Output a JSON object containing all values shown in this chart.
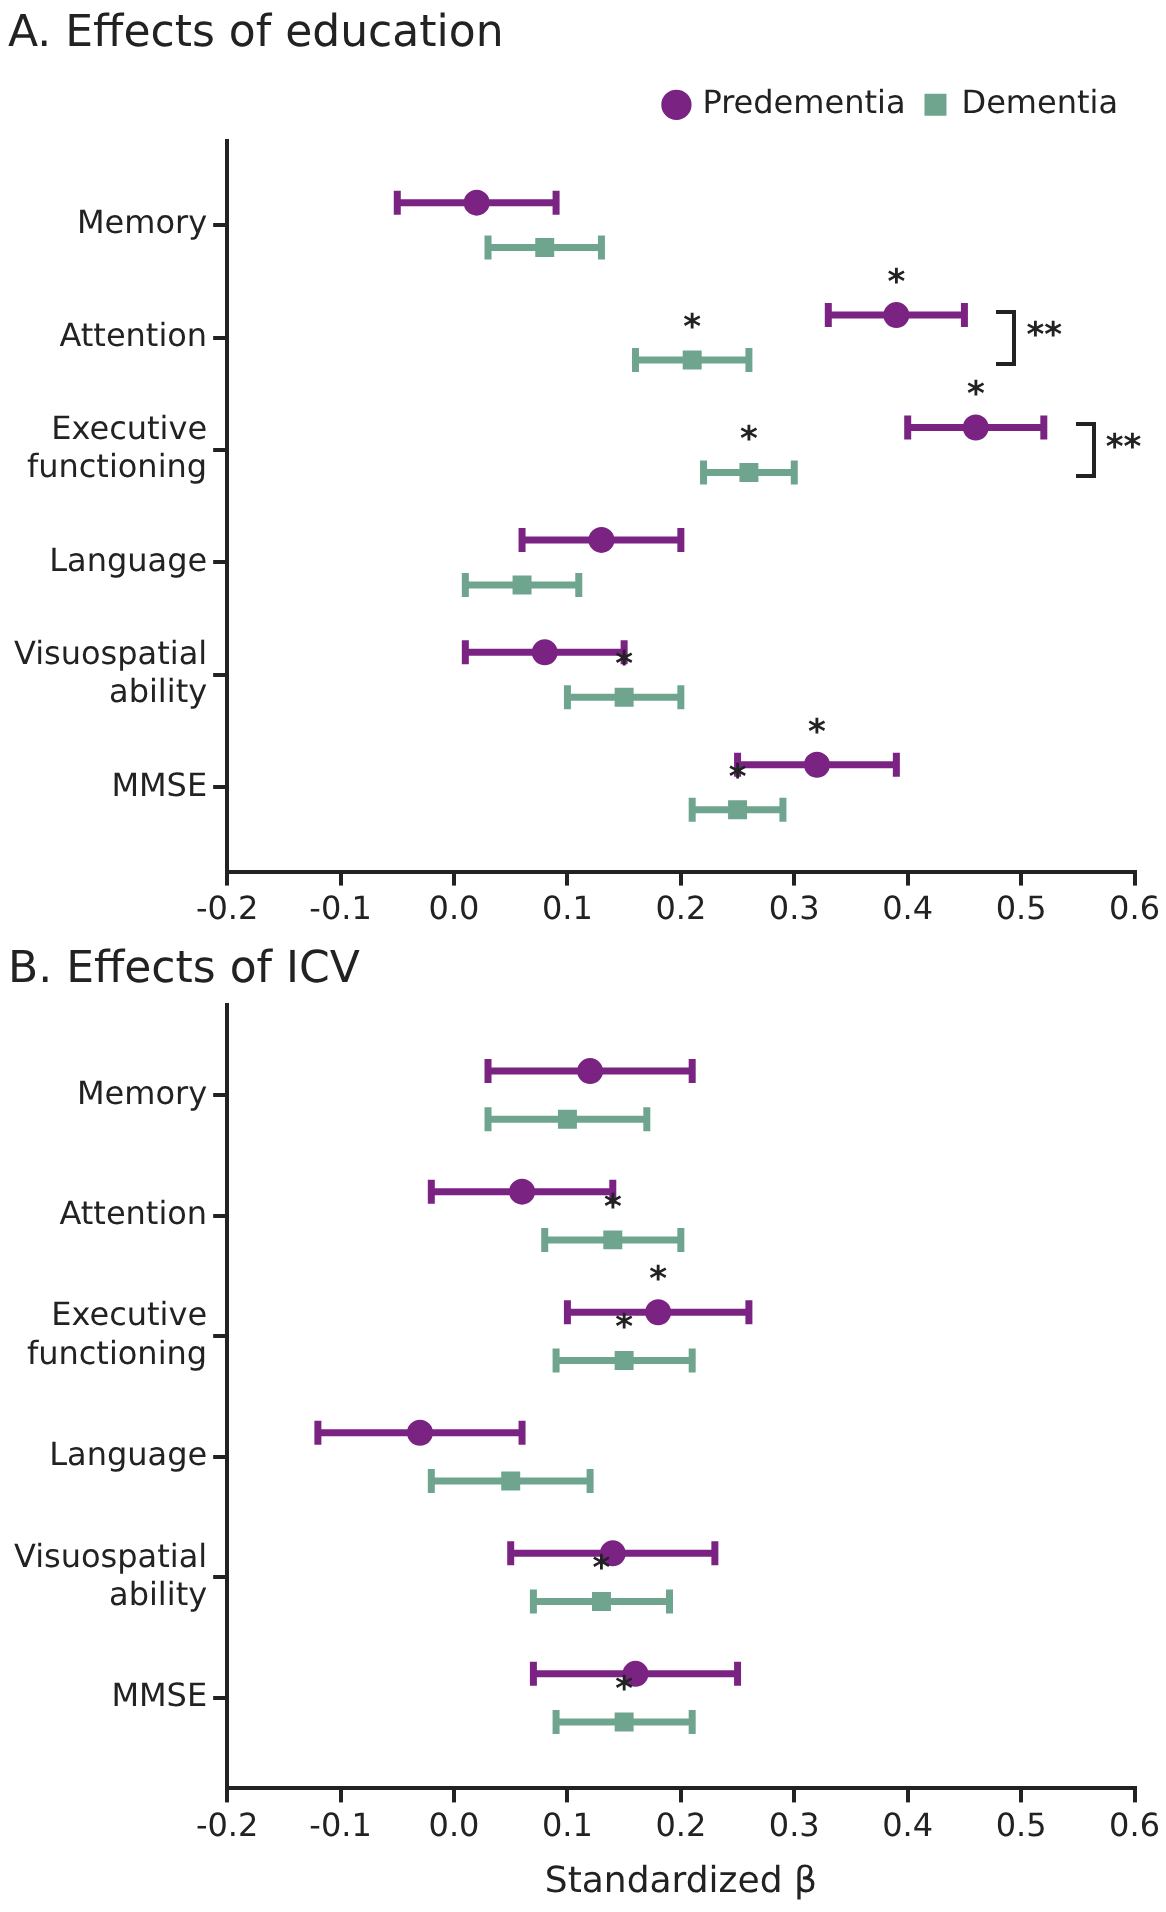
{
  "chart_data": [
    {
      "type": "scatter",
      "title": "A. Effects of education",
      "orientation": "horizontal",
      "legend": "top right",
      "categories": [
        "Memory",
        "Attention",
        "Executive functioning",
        "Language",
        "Visuospatial ability",
        "MMSE"
      ],
      "series": [
        {
          "name": "Predementia",
          "color": "#7b2382",
          "marker": "circle",
          "values": [
            0.02,
            0.39,
            0.46,
            0.13,
            0.08,
            0.32
          ],
          "errors": [
            [
              -0.05,
              0.09
            ],
            [
              0.33,
              0.45
            ],
            [
              0.4,
              0.52
            ],
            [
              0.06,
              0.2
            ],
            [
              0.01,
              0.15
            ],
            [
              0.25,
              0.39
            ]
          ],
          "value_labels": [
            null,
            "*",
            "*",
            null,
            null,
            "*"
          ]
        },
        {
          "name": "Dementia",
          "color": "#6fa58e",
          "marker": "square",
          "values": [
            0.08,
            0.21,
            0.26,
            0.06,
            0.15,
            0.25
          ],
          "errors": [
            [
              0.03,
              0.13
            ],
            [
              0.16,
              0.26
            ],
            [
              0.22,
              0.3
            ],
            [
              0.01,
              0.11
            ],
            [
              0.1,
              0.2
            ],
            [
              0.21,
              0.29
            ]
          ],
          "value_labels": [
            null,
            "*",
            "*",
            null,
            "*",
            "*"
          ]
        }
      ],
      "xlim": [
        -0.2,
        0.6
      ],
      "xticks": [
        {
          "value": -0.2,
          "label": "-0.2"
        },
        {
          "value": -0.1,
          "label": "-0.1"
        },
        {
          "value": 0,
          "label": "0.0"
        },
        {
          "value": 0.1,
          "label": "0.1"
        },
        {
          "value": 0.2,
          "label": "0.2"
        },
        {
          "value": 0.3,
          "label": "0.3"
        },
        {
          "value": 0.4,
          "label": "0.4"
        },
        {
          "value": 0.5,
          "label": "0.5"
        },
        {
          "value": 0.6,
          "label": "0.6"
        }
      ],
      "annotations": [
        "**",
        "**"
      ]
    },
    {
      "type": "scatter",
      "title": "B. Effects of ICV",
      "xlabel": "Standardized β",
      "orientation": "horizontal",
      "categories": [
        "Memory",
        "Attention",
        "Executive functioning",
        "Language",
        "Visuospatial ability",
        "MMSE"
      ],
      "series": [
        {
          "color": "#7b2382",
          "marker": "circle",
          "values": [
            0.12,
            0.06,
            0.18,
            -0.03,
            0.14,
            0.16
          ],
          "errors": [
            [
              0.03,
              0.21
            ],
            [
              -0.02,
              0.14
            ],
            [
              0.1,
              0.26
            ],
            [
              -0.12,
              0.06
            ],
            [
              0.05,
              0.23
            ],
            [
              0.07,
              0.25
            ]
          ],
          "value_labels": [
            null,
            null,
            "*",
            null,
            null,
            null
          ]
        },
        {
          "color": "#6fa58e",
          "marker": "square",
          "values": [
            0.1,
            0.14,
            0.15,
            0.05,
            0.13,
            0.15
          ],
          "errors": [
            [
              0.03,
              0.17
            ],
            [
              0.08,
              0.2
            ],
            [
              0.09,
              0.21
            ],
            [
              -0.02,
              0.12
            ],
            [
              0.07,
              0.19
            ],
            [
              0.09,
              0.21
            ]
          ],
          "value_labels": [
            null,
            "*",
            "*",
            null,
            "*",
            "*"
          ]
        }
      ],
      "xlim": [
        -0.2,
        0.6
      ],
      "xticks": [
        {
          "value": -0.2,
          "label": "-0.2"
        },
        {
          "value": -0.1,
          "label": "-0.1"
        },
        {
          "value": 0,
          "label": "0.0"
        },
        {
          "value": 0.1,
          "label": "0.1"
        },
        {
          "value": 0.2,
          "label": "0.2"
        },
        {
          "value": 0.3,
          "label": "0.3"
        },
        {
          "value": 0.4,
          "label": "0.4"
        },
        {
          "value": 0.5,
          "label": "0.5"
        },
        {
          "value": 0.6,
          "label": "0.6"
        }
      ]
    }
  ]
}
